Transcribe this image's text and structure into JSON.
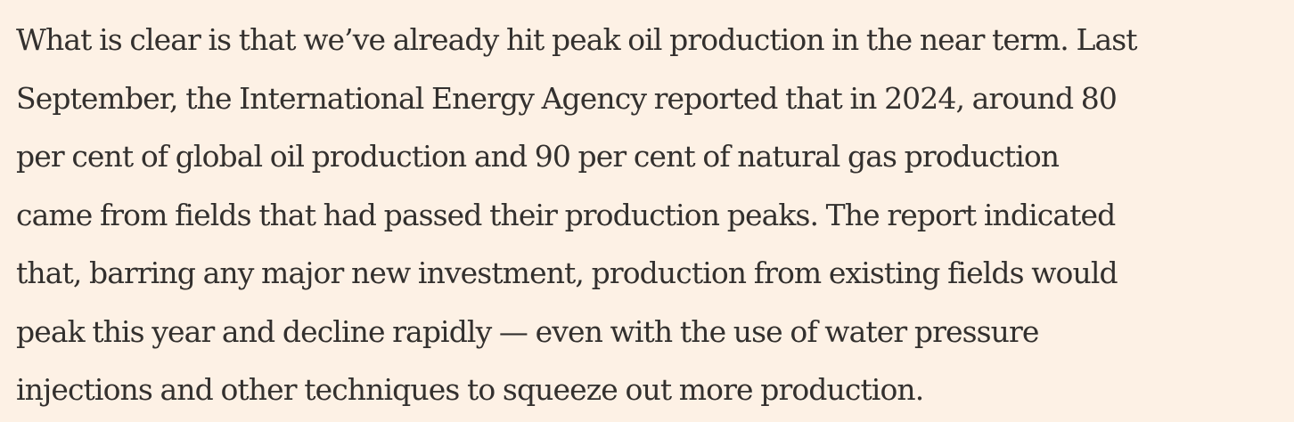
{
  "article": {
    "paragraph_lines": [
      "What is clear is that we’ve already hit peak oil production in the near term. Last",
      "September, the International Energy Agency reported that in 2024, around 80",
      "per cent of global oil production and 90 per cent of natural gas production",
      "came from fields that had passed their production peaks. The report indicated",
      "that, barring any major new investment, production from existing fields would",
      "peak this year and decline rapidly — even with the use of water pressure",
      "injections and other techniques to squeeze out more production."
    ]
  },
  "colors": {
    "background": "#fdf1e5",
    "text": "#33302e"
  }
}
